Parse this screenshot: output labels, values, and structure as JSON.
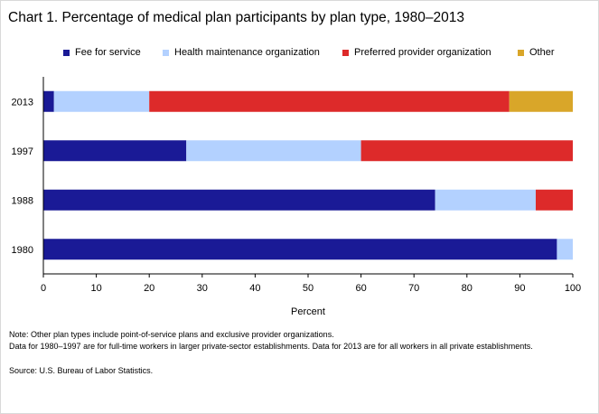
{
  "chart_data": {
    "type": "bar",
    "orientation": "horizontal",
    "stacked": true,
    "title": "Chart 1. Percentage of medical plan participants by plan type, 1980–2013",
    "categories": [
      "2013",
      "1997",
      "1988",
      "1980"
    ],
    "series": [
      {
        "name": "Fee for service",
        "color": "#1a1a96",
        "values": [
          2,
          27,
          74,
          97
        ]
      },
      {
        "name": "Health maintenance organization",
        "color": "#b3d1ff",
        "values": [
          18,
          33,
          19,
          3
        ]
      },
      {
        "name": "Preferred provider organization",
        "color": "#dd2a2a",
        "values": [
          68,
          40,
          7,
          0
        ]
      },
      {
        "name": "Other",
        "color": "#d9a629",
        "values": [
          12,
          0,
          0,
          0
        ]
      }
    ],
    "xlabel": "Percent",
    "ylabel": "",
    "xlim": [
      0,
      100
    ],
    "xticks": [
      0,
      10,
      20,
      30,
      40,
      50,
      60,
      70,
      80,
      90,
      100
    ],
    "legend_position": "top"
  },
  "notes": {
    "line1": "Note: Other plan types include point-of-service plans and exclusive provider organizations.",
    "line2": "Data for 1980–1997 are for full-time workers in larger private-sector establishments. Data for 2013 are for all workers in all private establishments.",
    "source": "Source: U.S. Bureau of Labor Statistics."
  }
}
